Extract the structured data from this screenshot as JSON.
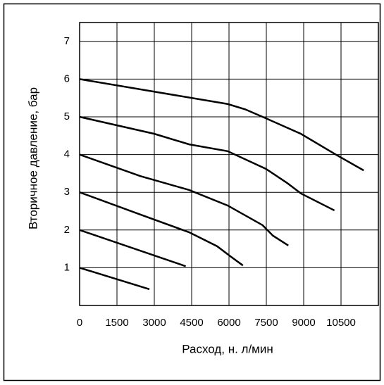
{
  "chart_data": {
    "type": "line",
    "xlabel": "Расход, н. л/мин",
    "ylabel": "Вторичное давление, бар",
    "xlim": [
      0,
      12000
    ],
    "xticks": [
      0,
      1500,
      3000,
      4500,
      6000,
      7500,
      9000,
      10500
    ],
    "ylim": [
      0,
      7.5
    ],
    "yticks": [
      1,
      2,
      3,
      4,
      5,
      6,
      7
    ],
    "grid": true,
    "series": [
      {
        "color": "#000000",
        "x": [
          0,
          5944,
          6645,
          7486,
          8888,
          10290,
          11411
        ],
        "values": [
          6,
          5.34,
          5.2,
          4.96,
          4.55,
          4,
          3.58
        ]
      },
      {
        "color": "#000000",
        "x": [
          0,
          3000,
          4400,
          5944,
          7486,
          8327,
          8888,
          10234
        ],
        "values": [
          5,
          4.55,
          4.27,
          4.09,
          3.62,
          3.25,
          2.97,
          2.52
        ]
      },
      {
        "color": "#000000",
        "x": [
          0,
          2439,
          4400,
          5944,
          7346,
          7766,
          8383
        ],
        "values": [
          4,
          3.43,
          3.06,
          2.65,
          2.13,
          1.85,
          1.59
        ]
      },
      {
        "color": "#000000",
        "x": [
          0,
          2439,
          4400,
          5523,
          6084,
          6560
        ],
        "values": [
          3,
          2.41,
          1.94,
          1.57,
          1.29,
          1.06
        ]
      },
      {
        "color": "#000000",
        "x": [
          0,
          4262
        ],
        "values": [
          2,
          1.04
        ]
      },
      {
        "color": "#000000",
        "x": [
          0,
          2804
        ],
        "values": [
          1,
          0.43
        ]
      }
    ]
  }
}
